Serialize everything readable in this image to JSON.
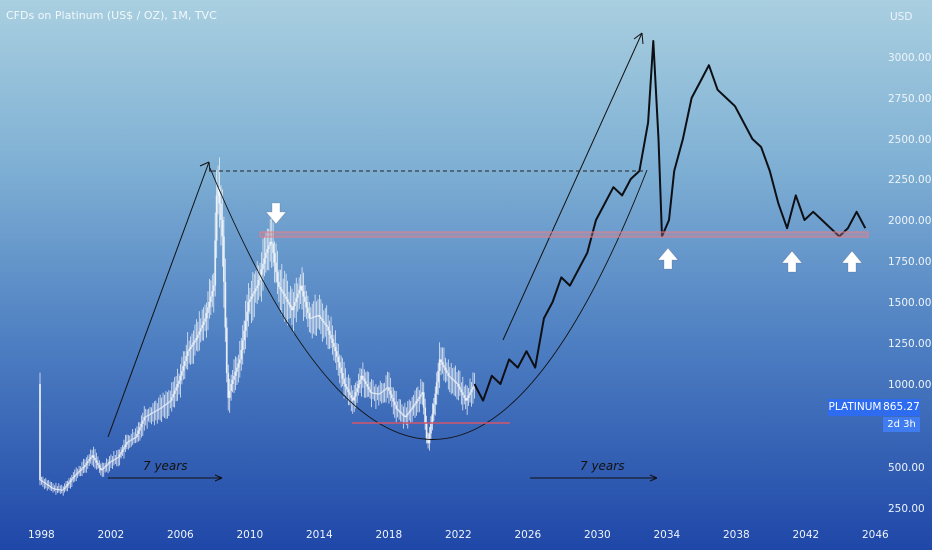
{
  "window": {
    "title": "CFDs on Platinum (US$ / OZ), 1M, TVC"
  },
  "currency_label": "USD",
  "price_badge": {
    "symbol": "PLATINUM",
    "price": "865.27",
    "countdown": "2d 3h"
  },
  "annotations": {
    "left_span": "7 years",
    "right_span": "7 years"
  },
  "colors": {
    "candles": "#f2f6fa",
    "projection": "#0d0f14",
    "support_band": "#e0808a",
    "arrows": "#ffffff",
    "badge": "#2d6cf0"
  },
  "chart_data": {
    "type": "line",
    "title": "CFDs on Platinum (US$ / OZ), 1M, TVC",
    "x_ticks": [
      "1998",
      "2002",
      "2006",
      "2010",
      "2014",
      "2018",
      "2022",
      "2026",
      "2030",
      "2034",
      "2038",
      "2042",
      "2046"
    ],
    "y_ticks": [
      "250.00",
      "500.00",
      "1000.00",
      "1250.00",
      "1500.00",
      "1750.00",
      "2000.00",
      "2250.00",
      "2500.00",
      "2750.00",
      "3000.00"
    ],
    "y_range": [
      250,
      3150
    ],
    "x_range": [
      1997.8,
      2046.5
    ],
    "legend": "none",
    "grid": false,
    "series": [
      {
        "kind": "candles",
        "points": [
          [
            1998.0,
            420
          ],
          [
            1998.7,
            370
          ],
          [
            1999.3,
            360
          ],
          [
            2000.0,
            450
          ],
          [
            2000.5,
            500
          ],
          [
            2001.0,
            570
          ],
          [
            2001.5,
            480
          ],
          [
            2002.0,
            530
          ],
          [
            2002.5,
            560
          ],
          [
            2003.0,
            650
          ],
          [
            2003.5,
            680
          ],
          [
            2004.0,
            800
          ],
          [
            2004.5,
            830
          ],
          [
            2005.0,
            860
          ],
          [
            2005.5,
            900
          ],
          [
            2006.0,
            1020
          ],
          [
            2006.5,
            1200
          ],
          [
            2007.0,
            1280
          ],
          [
            2007.5,
            1400
          ],
          [
            2008.0,
            1600
          ],
          [
            2008.2,
            2260
          ],
          [
            2008.5,
            1900
          ],
          [
            2008.8,
            900
          ],
          [
            2009.0,
            1000
          ],
          [
            2009.5,
            1150
          ],
          [
            2010.0,
            1500
          ],
          [
            2010.5,
            1600
          ],
          [
            2011.0,
            1800
          ],
          [
            2011.3,
            1880
          ],
          [
            2011.7,
            1600
          ],
          [
            2012.0,
            1550
          ],
          [
            2012.5,
            1450
          ],
          [
            2013.0,
            1600
          ],
          [
            2013.5,
            1400
          ],
          [
            2014.0,
            1420
          ],
          [
            2014.5,
            1350
          ],
          [
            2015.0,
            1200
          ],
          [
            2015.5,
            1000
          ],
          [
            2016.0,
            900
          ],
          [
            2016.5,
            1050
          ],
          [
            2017.0,
            950
          ],
          [
            2017.5,
            940
          ],
          [
            2018.0,
            980
          ],
          [
            2018.5,
            850
          ],
          [
            2019.0,
            800
          ],
          [
            2019.5,
            870
          ],
          [
            2020.0,
            950
          ],
          [
            2020.3,
            620
          ],
          [
            2020.7,
            900
          ],
          [
            2021.0,
            1150
          ],
          [
            2021.5,
            1050
          ],
          [
            2022.0,
            1000
          ],
          [
            2022.5,
            900
          ],
          [
            2023.0,
            1000
          ]
        ]
      },
      {
        "kind": "projection",
        "points": [
          [
            2023.0,
            1000
          ],
          [
            2023.5,
            900
          ],
          [
            2024.0,
            1050
          ],
          [
            2024.5,
            1000
          ],
          [
            2025.0,
            1150
          ],
          [
            2025.5,
            1100
          ],
          [
            2026.0,
            1200
          ],
          [
            2026.5,
            1100
          ],
          [
            2027.0,
            1400
          ],
          [
            2027.5,
            1500
          ],
          [
            2028.0,
            1650
          ],
          [
            2028.5,
            1600
          ],
          [
            2029.0,
            1700
          ],
          [
            2029.5,
            1800
          ],
          [
            2030.0,
            2000
          ],
          [
            2030.5,
            2100
          ],
          [
            2031.0,
            2200
          ],
          [
            2031.5,
            2150
          ],
          [
            2032.0,
            2250
          ],
          [
            2032.5,
            2300
          ],
          [
            2033.0,
            2600
          ],
          [
            2033.3,
            3100
          ],
          [
            2033.6,
            2500
          ],
          [
            2033.8,
            1900
          ],
          [
            2034.2,
            2000
          ],
          [
            2034.5,
            2300
          ],
          [
            2035.0,
            2500
          ],
          [
            2035.5,
            2750
          ],
          [
            2036.0,
            2850
          ],
          [
            2036.5,
            2950
          ],
          [
            2037.0,
            2800
          ],
          [
            2037.5,
            2750
          ],
          [
            2038.0,
            2700
          ],
          [
            2038.5,
            2600
          ],
          [
            2039.0,
            2500
          ],
          [
            2039.5,
            2450
          ],
          [
            2040.0,
            2300
          ],
          [
            2040.5,
            2100
          ],
          [
            2041.0,
            1950
          ],
          [
            2041.5,
            2150
          ],
          [
            2042.0,
            2000
          ],
          [
            2042.5,
            2050
          ],
          [
            2043.0,
            2000
          ],
          [
            2043.5,
            1950
          ],
          [
            2044.0,
            1900
          ],
          [
            2044.5,
            1950
          ],
          [
            2045.0,
            2050
          ],
          [
            2045.5,
            1950
          ]
        ]
      }
    ]
  }
}
